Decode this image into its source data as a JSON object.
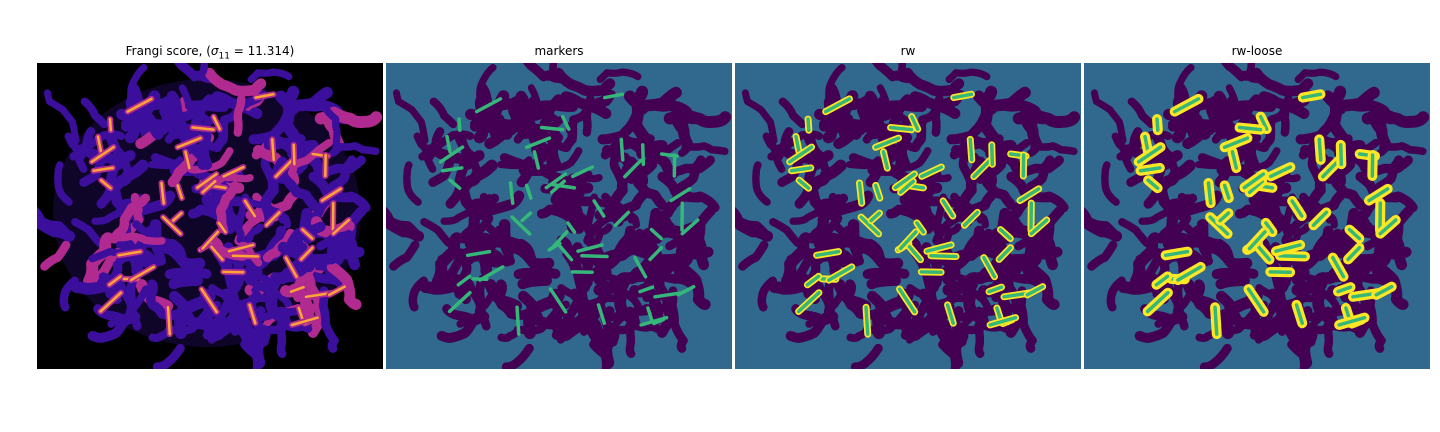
{
  "figure": {
    "panels": [
      {
        "title_prefix": "Frangi score, (",
        "sigma_symbol": "σ",
        "sigma_subscript": "11",
        "sigma_equals": " = 11.314",
        "title_suffix": ")"
      },
      {
        "title": "markers"
      },
      {
        "title": "rw"
      },
      {
        "title": "rw-loose"
      }
    ]
  },
  "colors": {
    "frangi_background": "#000000",
    "frangi_low": "#3b0f9c",
    "frangi_mid": "#b12a90",
    "frangi_high": "#fca636",
    "seg_background": "#31688e",
    "seg_region": "#440154",
    "seg_marker": "#35b779",
    "seg_label": "#fde725"
  }
}
